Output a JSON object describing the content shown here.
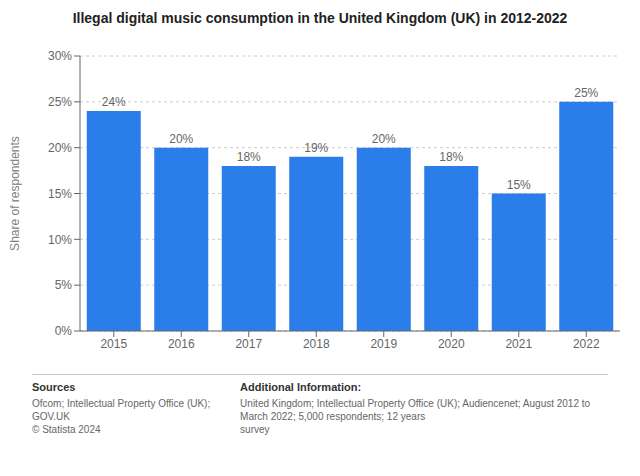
{
  "chart_data": {
    "type": "bar",
    "title": "Illegal digital music consumption in the United Kingdom (UK) in 2012-2022",
    "categories": [
      "2015",
      "2016",
      "2017",
      "2018",
      "2019",
      "2020",
      "2021",
      "2022"
    ],
    "values": [
      24,
      20,
      18,
      19,
      20,
      18,
      15,
      25
    ],
    "value_labels": [
      "24%",
      "20%",
      "18%",
      "19%",
      "20%",
      "18%",
      "15%",
      "25%"
    ],
    "data_labels": true,
    "color": "#2b7de9",
    "ylabel": "Share of respondents",
    "ylim": [
      0,
      30
    ],
    "yticks": [
      {
        "value": 0,
        "label": "0%"
      },
      {
        "value": 5,
        "label": "5%"
      },
      {
        "value": 10,
        "label": "10%"
      },
      {
        "value": 15,
        "label": "15%"
      },
      {
        "value": 20,
        "label": "20%"
      },
      {
        "value": 25,
        "label": "25%"
      },
      {
        "value": 30,
        "label": "30%"
      }
    ],
    "grid": true,
    "annotations": [
      "Sources",
      "Ofcom; Intellectual Property Office (UK); GOV.UK\n© Statista 2024",
      "Additional Information:",
      "United Kingdom; Intellectual Property Office (UK); Audiencenet; August 2012 to March 2022; 5,000 respondents; 12 years\nsurvey"
    ]
  }
}
